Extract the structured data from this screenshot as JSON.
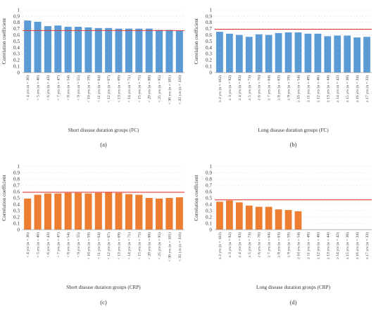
{
  "chart_data": [
    {
      "panel": "(a)",
      "type": "bar",
      "bar_color": "#5b9bd5",
      "reference_line": 0.67,
      "reference_line_color": "#e23b3b",
      "ylabel": "Correlation coefficient",
      "xlabel": "Short disease duration groups (FC)",
      "ylim": [
        0,
        1
      ],
      "yticks": [
        "0",
        "0.1",
        "0.2",
        "0.3",
        "0.4",
        "0.5",
        "0.6",
        "0.7",
        "0.8",
        "0.9",
        "1"
      ],
      "grid": "dotted",
      "categories": [
        "< 4 yrs (n = 30)",
        "< 5 yrs (n = 40)",
        "< 6 yrs (n = 43)",
        "< 7 yrs (n = 47)",
        "< 8 yrs (n = 54)",
        "< 9 yrs (n = 55)",
        "< 10 yrs (n = 59)",
        "< 11 yrs (n = 64)",
        "< 12 yrs (n = 67)",
        "< 13 yrs (n = 69)",
        "< 14 yrs (n = 71)",
        "< 15 yrs (n = 75)",
        "< 20 yrs (n = 88)",
        "< 25 yrs (n = 95)",
        "< 30 yrs (n = 101)",
        "< 35 yrs (n = 110)"
      ],
      "values": [
        0.83,
        0.81,
        0.74,
        0.75,
        0.73,
        0.73,
        0.72,
        0.71,
        0.71,
        0.7,
        0.7,
        0.7,
        0.7,
        0.68,
        0.68,
        0.67
      ]
    },
    {
      "panel": "(b)",
      "type": "bar",
      "bar_color": "#5b9bd5",
      "reference_line": 0.69,
      "reference_line_color": "#e23b3b",
      "ylabel": "Correlation coefficient",
      "xlabel": "Long disease duration groups (FC)",
      "ylim": [
        0,
        1
      ],
      "yticks": [
        "0",
        "0.1",
        "0.2",
        "0.3",
        "0.4",
        "0.5",
        "0.6",
        "0.7",
        "0.8",
        "0.9",
        "1"
      ],
      "grid": "dotted",
      "categories": [
        "≥ 2 yrs (n = 102)",
        "≥ 3 yrs (n = 92)",
        "≥ 4 yrs (n = 83)",
        "≥ 5 yrs (n = 73)",
        "≥ 6 yrs (n = 70)",
        "≥ 7 yrs (n = 64)",
        "≥ 8 yrs (n = 63)",
        "≥ 9 yrs (n = 59)",
        "≥ 10 yrs (n = 54)",
        "≥ 11 yrs (n = 49)",
        "≥ 12 yrs (n = 46)",
        "≥ 13 yrs (n = 44)",
        "≥ 14 yrs (n = 42)",
        "≥ 15 yrs (n = 38)",
        "≥ 16 yrs (n = 34)",
        "≥ 17 yrs (n = 33)"
      ],
      "values": [
        0.65,
        0.62,
        0.6,
        0.57,
        0.61,
        0.6,
        0.63,
        0.64,
        0.64,
        0.62,
        0.62,
        0.58,
        0.59,
        0.59,
        0.56,
        0.57
      ]
    },
    {
      "panel": "(c)",
      "type": "bar",
      "bar_color": "#ed7d31",
      "reference_line": 0.59,
      "reference_line_color": "#e23b3b",
      "ylabel": "Correlation coefficient",
      "xlabel": "Short disease duration groups (CRP)",
      "ylim": [
        0,
        1
      ],
      "yticks": [
        "0",
        "0.1",
        "0.2",
        "0.3",
        "0.4",
        "0.5",
        "0.6",
        "0.7",
        "0.8",
        "0.9",
        "1"
      ],
      "grid": "dotted",
      "categories": [
        "< 4 yrs (n = 30)",
        "< 5 yrs (n = 40)",
        "< 6 yrs (n = 43)",
        "< 7 yrs (n = 47)",
        "< 8 yrs (n = 54)",
        "< 9 yrs (n = 55)",
        "< 10 yrs (n = 59)",
        "< 11 yrs (n = 64)",
        "< 12 yrs (n = 67)",
        "< 13 yrs (n = 69)",
        "< 14 yrs (n = 71)",
        "< 15 yrs (n = 75)",
        "< 20 yrs (n = 88)",
        "< 25 yrs (n = 95)",
        "< 30 yrs (n = 101)",
        "< 35 yrs (n = 110)"
      ],
      "values": [
        0.49,
        0.55,
        0.57,
        0.57,
        0.58,
        0.58,
        0.57,
        0.58,
        0.59,
        0.58,
        0.56,
        0.55,
        0.5,
        0.49,
        0.5,
        0.51
      ]
    },
    {
      "panel": "(d)",
      "type": "bar",
      "bar_color": "#ed7d31",
      "reference_line": 0.47,
      "reference_line_color": "#e23b3b",
      "ylabel": "Correlation coefficient",
      "xlabel": "Long disease duration groups (CRP)",
      "ylim": [
        0,
        1
      ],
      "yticks": [
        "0",
        "0.1",
        "0.2",
        "0.3",
        "0.4",
        "0.5",
        "0.6",
        "0.7",
        "0.8",
        "0.9",
        "1"
      ],
      "grid": "dotted",
      "categories": [
        "≥ 2 yrs (n = 102)",
        "≥ 3 yrs (n = 92)",
        "≥ 4 yrs (n = 83)",
        "≥ 5 yrs (n = 73)",
        "≥ 6 yrs (n = 70)",
        "≥ 7 yrs (n = 64)",
        "≥ 8 yrs (n = 63)",
        "≥ 9 yrs (n = 59)",
        "≥ 10 yrs (n = 54)",
        "≥ 11 yrs (n = 49)",
        "≥ 12 yrs (n = 46)",
        "≥ 13 yrs (n = 44)",
        "≥ 14 yrs (n = 42)",
        "≥ 15 yrs (n = 38)",
        "≥ 16 yrs (n = 34)",
        "≥ 17 yrs (n = 33)"
      ],
      "values": [
        0.44,
        0.46,
        0.43,
        0.38,
        0.36,
        0.36,
        0.32,
        0.31,
        0.29,
        0,
        0,
        0,
        0,
        0,
        0,
        0
      ]
    }
  ]
}
